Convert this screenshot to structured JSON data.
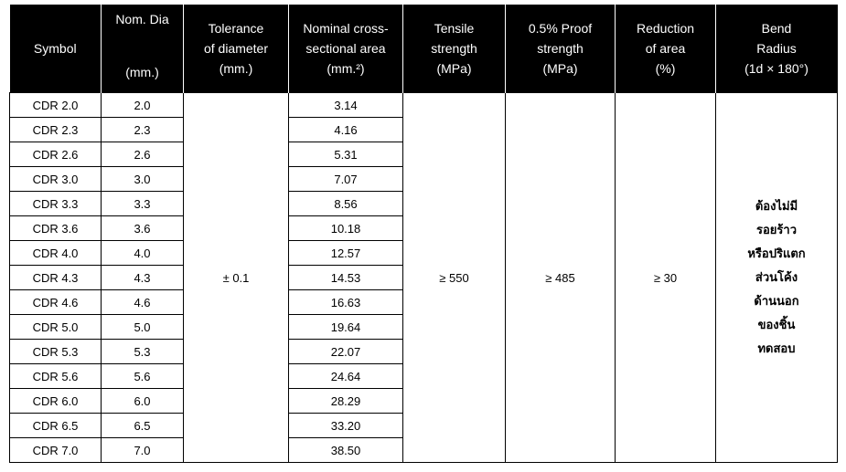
{
  "table": {
    "header": [
      [
        "Symbol"
      ],
      [
        "Nom. Dia",
        "(mm.)"
      ],
      [
        "Tolerance",
        "of diameter",
        "(mm.)"
      ],
      [
        "Nominal cross-",
        "sectional area",
        "(mm.²)"
      ],
      [
        "Tensile",
        "strength",
        "(MPa)"
      ],
      [
        "0.5% Proof",
        "strength",
        "(MPa)"
      ],
      [
        "Reduction",
        "of area",
        "(%)"
      ],
      [
        "Bend",
        "Radius",
        "(1d × 180°)"
      ]
    ],
    "rows": [
      [
        "CDR 2.0",
        "2.0",
        "3.14"
      ],
      [
        "CDR 2.3",
        "2.3",
        "4.16"
      ],
      [
        "CDR 2.6",
        "2.6",
        "5.31"
      ],
      [
        "CDR 3.0",
        "3.0",
        "7.07"
      ],
      [
        "CDR 3.3",
        "3.3",
        "8.56"
      ],
      [
        "CDR 3.6",
        "3.6",
        "10.18"
      ],
      [
        "CDR 4.0",
        "4.0",
        "12.57"
      ],
      [
        "CDR 4.3",
        "4.3",
        "14.53"
      ],
      [
        "CDR 4.6",
        "4.6",
        "16.63"
      ],
      [
        "CDR 5.0",
        "5.0",
        "19.64"
      ],
      [
        "CDR 5.3",
        "5.3",
        "22.07"
      ],
      [
        "CDR 5.6",
        "5.6",
        "24.64"
      ],
      [
        "CDR 6.0",
        "6.0",
        "28.29"
      ],
      [
        "CDR 6.5",
        "6.5",
        "33.20"
      ],
      [
        "CDR 7.0",
        "7.0",
        "38.50"
      ]
    ],
    "tolerance": "± 0.1",
    "tensile_strength": "≥ 550",
    "proof_strength": "≥ 485",
    "reduction_of_area": "≥ 30",
    "bend_radius": [
      "ต้องไม่มี",
      "รอยร้าว",
      "หรือปริแตก",
      "ส่วนโค้ง",
      "ด้านนอก",
      "ของชิ้น",
      "ทดสอบ"
    ]
  }
}
